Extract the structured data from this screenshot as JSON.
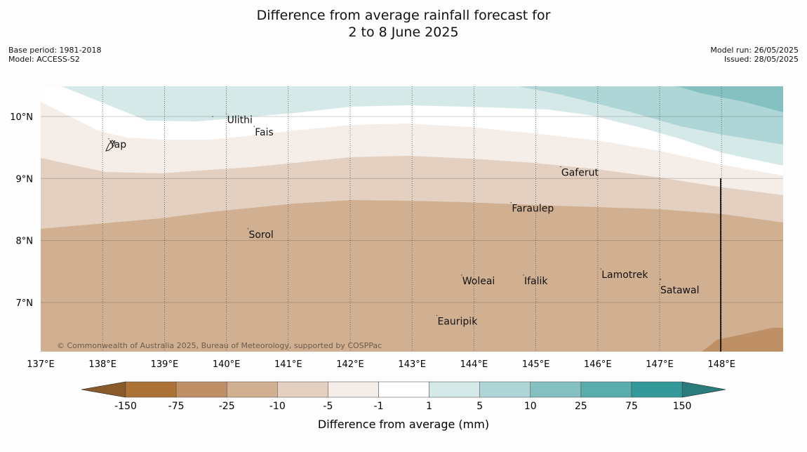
{
  "title_line1": "Difference from average rainfall forecast for",
  "title_line2": "2 to 8 June 2025",
  "meta_left": [
    "Base period: 1981-2018",
    "Model: ACCESS-S2"
  ],
  "meta_right": [
    "Model run: 26/05/2025",
    "Issued: 28/05/2025"
  ],
  "lon_ticks": [
    "137°E",
    "138°E",
    "139°E",
    "140°E",
    "141°E",
    "142°E",
    "143°E",
    "144°E",
    "145°E",
    "146°E",
    "147°E",
    "148°E"
  ],
  "lat_ticks": [
    "10°N",
    "9°N",
    "8°N",
    "7°N"
  ],
  "places": [
    {
      "name": "Ulithi",
      "lon": 140.0,
      "lat": 9.95
    },
    {
      "name": "Fais",
      "lon": 140.45,
      "lat": 9.75
    },
    {
      "name": "Yap",
      "lon": 138.1,
      "lat": 9.55
    },
    {
      "name": "Gaferut",
      "lon": 145.4,
      "lat": 9.1
    },
    {
      "name": "Faraulep",
      "lon": 144.6,
      "lat": 8.52
    },
    {
      "name": "Sorol",
      "lon": 140.35,
      "lat": 8.1
    },
    {
      "name": "Woleai",
      "lon": 143.8,
      "lat": 7.35
    },
    {
      "name": "Ifalik",
      "lon": 144.8,
      "lat": 7.35
    },
    {
      "name": "Lamotrek",
      "lon": 146.05,
      "lat": 7.45
    },
    {
      "name": "Satawal",
      "lon": 147.0,
      "lat": 7.2
    },
    {
      "name": "Eauripik",
      "lon": 143.4,
      "lat": 6.7
    }
  ],
  "copyright": "© Commonwealth of Australia 2025, Bureau of Meteorology, supported by COSPPac",
  "colorbar": {
    "ticks": [
      "-150",
      "-75",
      "-25",
      "-10",
      "-5",
      "-1",
      "1",
      "5",
      "10",
      "25",
      "75",
      "150"
    ],
    "colors": [
      "#ad7336",
      "#bf9065",
      "#d1b092",
      "#e3d0c0",
      "#f4ede8",
      "#ffffff",
      "#d5e9e8",
      "#aed6d6",
      "#84c0c0",
      "#5bacac",
      "#349999"
    ],
    "low_end": "#8a5a2b",
    "high_end": "#2a7c7c",
    "label": "Difference from average (mm)"
  }
}
